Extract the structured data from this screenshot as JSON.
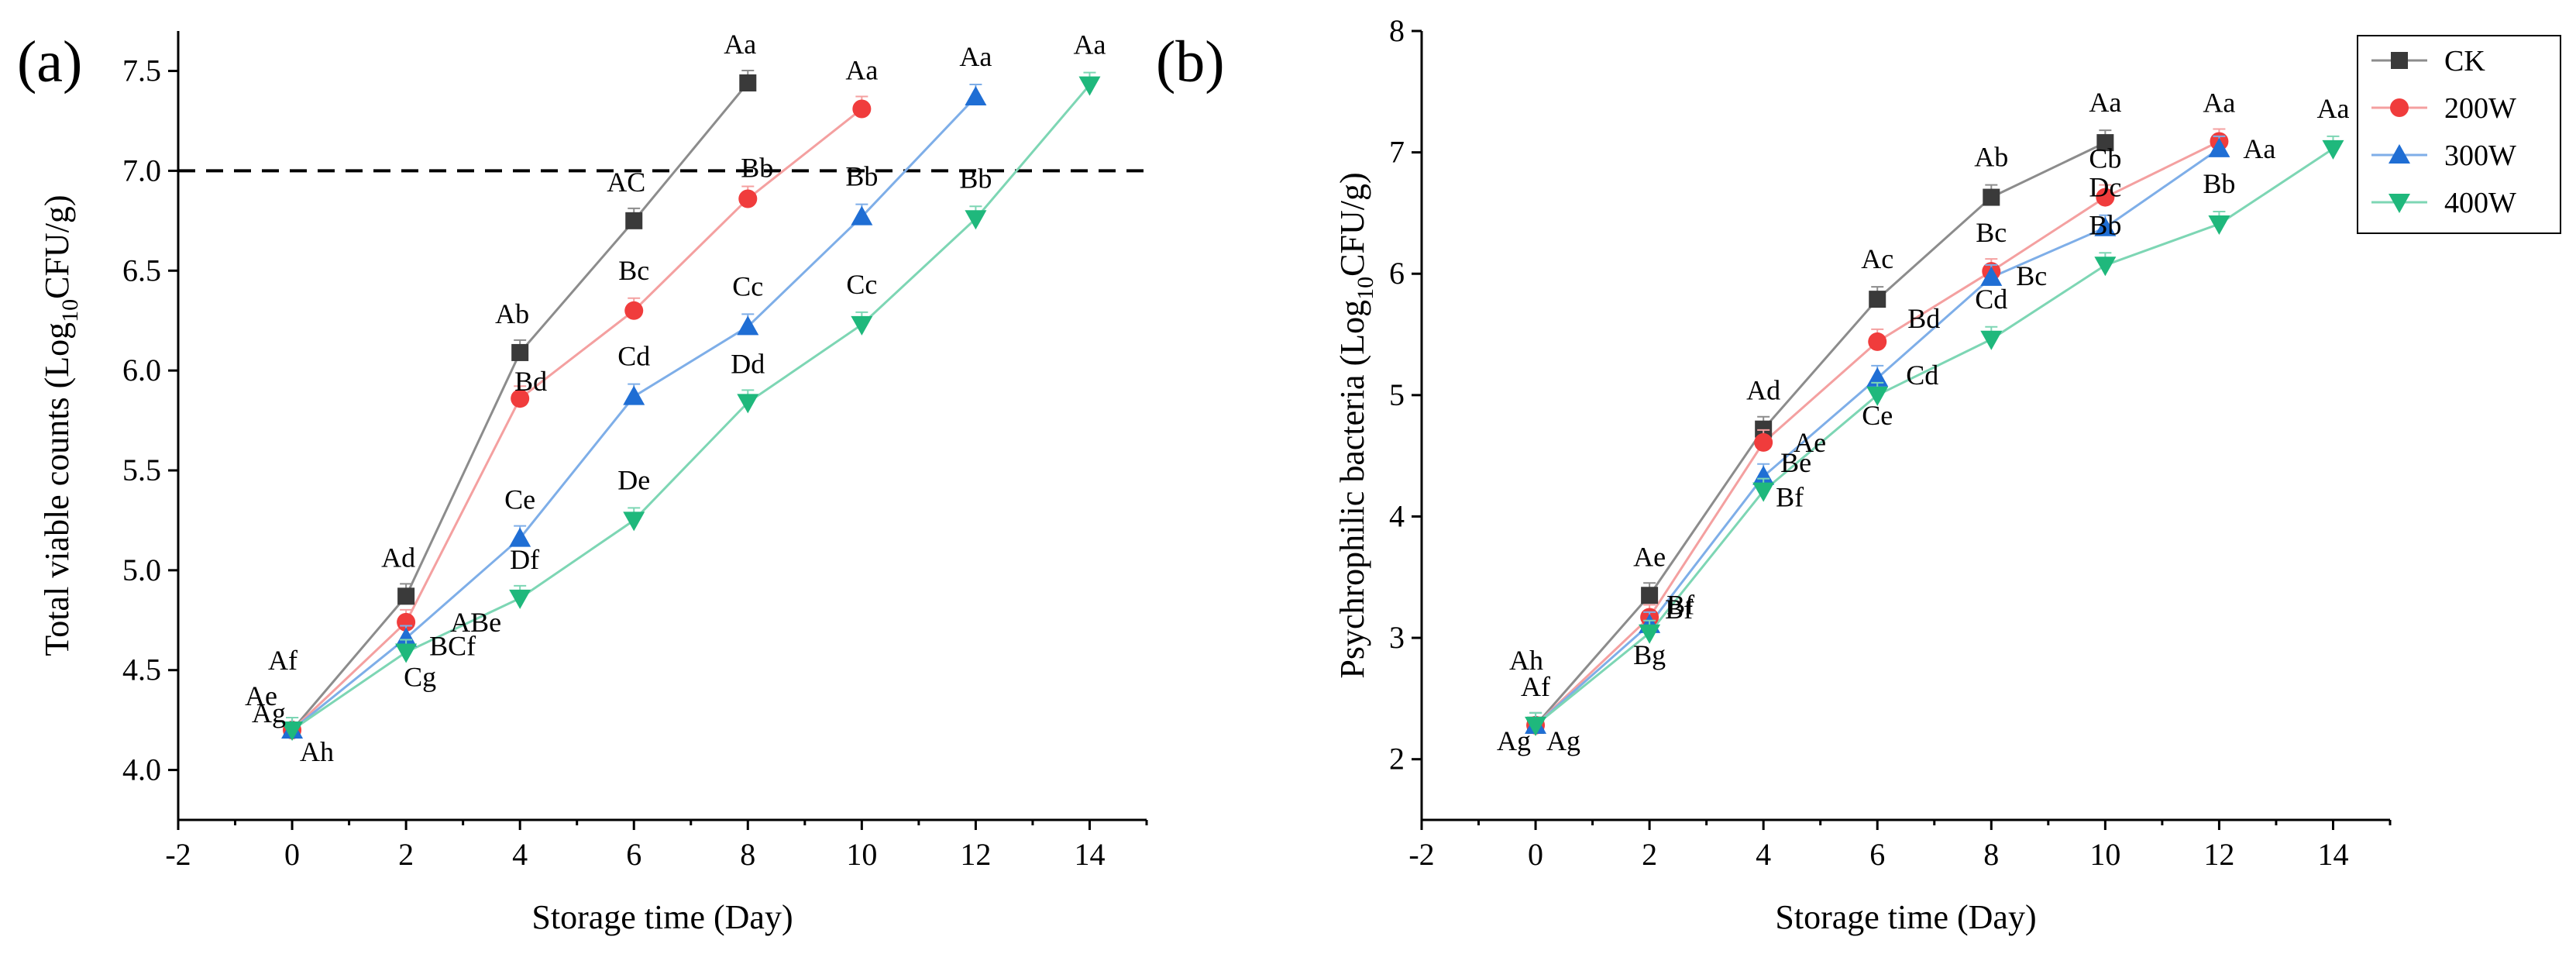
{
  "chart_data": [
    {
      "panel_label": "(a)",
      "type": "line",
      "xlabel": "Storage time (Day)",
      "ylabel": {
        "pre": "Total viable counts (Log",
        "sub": "10",
        "post": "CFU/g)"
      },
      "xlim": [
        -2,
        15
      ],
      "ylim": [
        3.75,
        7.7
      ],
      "x_ticks": [
        -2,
        0,
        2,
        4,
        6,
        8,
        10,
        12,
        14
      ],
      "y_ticks": [
        4.0,
        4.5,
        5.0,
        5.5,
        6.0,
        6.5,
        7.0,
        7.5
      ],
      "y_tick_labels": [
        "4.0",
        "4.5",
        "5.0",
        "5.5",
        "6.0",
        "6.5",
        "7.0",
        "7.5"
      ],
      "reference_line_y": 7.0,
      "legend": "none",
      "series": [
        {
          "name": "CK",
          "color": "#8c8c8c",
          "marker_color": "#3a3a3a",
          "marker": "square",
          "x": [
            0,
            2,
            4,
            6,
            8
          ],
          "y": [
            4.2,
            4.87,
            6.09,
            6.75,
            7.44
          ],
          "labels": [
            "Af",
            "Ad",
            "Ab",
            "AC",
            "Aa"
          ]
        },
        {
          "name": "200W",
          "color": "#f4a0a0",
          "marker_color": "#f03c3c",
          "marker": "circle",
          "x": [
            0,
            2,
            4,
            6,
            8,
            10
          ],
          "y": [
            4.2,
            4.74,
            5.86,
            6.3,
            6.86,
            7.31
          ],
          "labels": [
            "Ae",
            "ABe",
            "Bd",
            "Bc",
            "Bb",
            "Aa"
          ]
        },
        {
          "name": "300W",
          "color": "#7eaee8",
          "marker_color": "#1f6ed4",
          "marker": "triangle-up",
          "x": [
            0,
            2,
            4,
            6,
            8,
            10,
            12
          ],
          "y": [
            4.2,
            4.66,
            5.16,
            5.87,
            6.22,
            6.77,
            7.37
          ],
          "labels": [
            "Ag",
            "BCf",
            "Ce",
            "Cd",
            "Cc",
            "Bb",
            "Aa"
          ]
        },
        {
          "name": "400W",
          "color": "#7dd6b4",
          "marker_color": "#1fb87c",
          "marker": "triangle-down",
          "x": [
            0,
            2,
            4,
            6,
            8,
            10,
            12,
            14
          ],
          "y": [
            4.2,
            4.59,
            4.86,
            5.25,
            5.84,
            6.23,
            6.76,
            7.43
          ],
          "labels": [
            "Ah",
            "Cg",
            "Df",
            "De",
            "Dd",
            "Cc",
            "Bb",
            "Aa"
          ]
        }
      ]
    },
    {
      "panel_label": "(b)",
      "type": "line",
      "xlabel": "Storage time (Day)",
      "ylabel": {
        "pre": "Psychrophilic bacteria (Log",
        "sub": "10",
        "post": "CFU/g)"
      },
      "xlim": [
        -2,
        15
      ],
      "ylim": [
        1.5,
        8
      ],
      "x_ticks": [
        -2,
        0,
        2,
        4,
        6,
        8,
        10,
        12,
        14
      ],
      "y_ticks": [
        2,
        3,
        4,
        5,
        6,
        7,
        8
      ],
      "y_tick_labels": [
        "2",
        "3",
        "4",
        "5",
        "6",
        "7",
        "8"
      ],
      "legend": "top-right",
      "series": [
        {
          "name": "CK",
          "color": "#8c8c8c",
          "marker_color": "#3a3a3a",
          "marker": "square",
          "x": [
            0,
            2,
            4,
            6,
            8,
            10
          ],
          "y": [
            2.28,
            3.35,
            4.72,
            5.79,
            6.63,
            7.08
          ],
          "labels": [
            "Ah",
            "Ae",
            "Ad",
            "Ac",
            "Ab",
            "Aa"
          ]
        },
        {
          "name": "200W",
          "color": "#f4a0a0",
          "marker_color": "#f03c3c",
          "marker": "circle",
          "x": [
            0,
            2,
            4,
            6,
            8,
            10,
            12
          ],
          "y": [
            2.28,
            3.17,
            4.61,
            5.44,
            6.02,
            6.63,
            7.09
          ],
          "labels": [
            "Af",
            "Bf",
            "Ae",
            "Bd",
            "Bc",
            "Cb",
            "Aa"
          ]
        },
        {
          "name": "300W",
          "color": "#7eaee8",
          "marker_color": "#1f6ed4",
          "marker": "triangle-up",
          "x": [
            0,
            2,
            4,
            6,
            8,
            10,
            12
          ],
          "y": [
            2.28,
            3.11,
            4.33,
            5.14,
            5.97,
            6.38,
            7.03
          ],
          "labels": [
            "Ag",
            "Bf",
            "Be",
            "Cd",
            "Bc",
            "Dc",
            "Aa"
          ]
        },
        {
          "name": "400W",
          "color": "#7dd6b4",
          "marker_color": "#1fb87c",
          "marker": "triangle-down",
          "x": [
            0,
            2,
            4,
            6,
            8,
            10,
            12,
            14
          ],
          "y": [
            2.28,
            3.04,
            4.21,
            5.0,
            5.46,
            6.07,
            6.41,
            7.03
          ],
          "labels": [
            "Ag",
            "Bg",
            "Bf",
            "Ce",
            "Cd",
            "Bb",
            "Bb",
            "Aa"
          ]
        }
      ]
    }
  ]
}
